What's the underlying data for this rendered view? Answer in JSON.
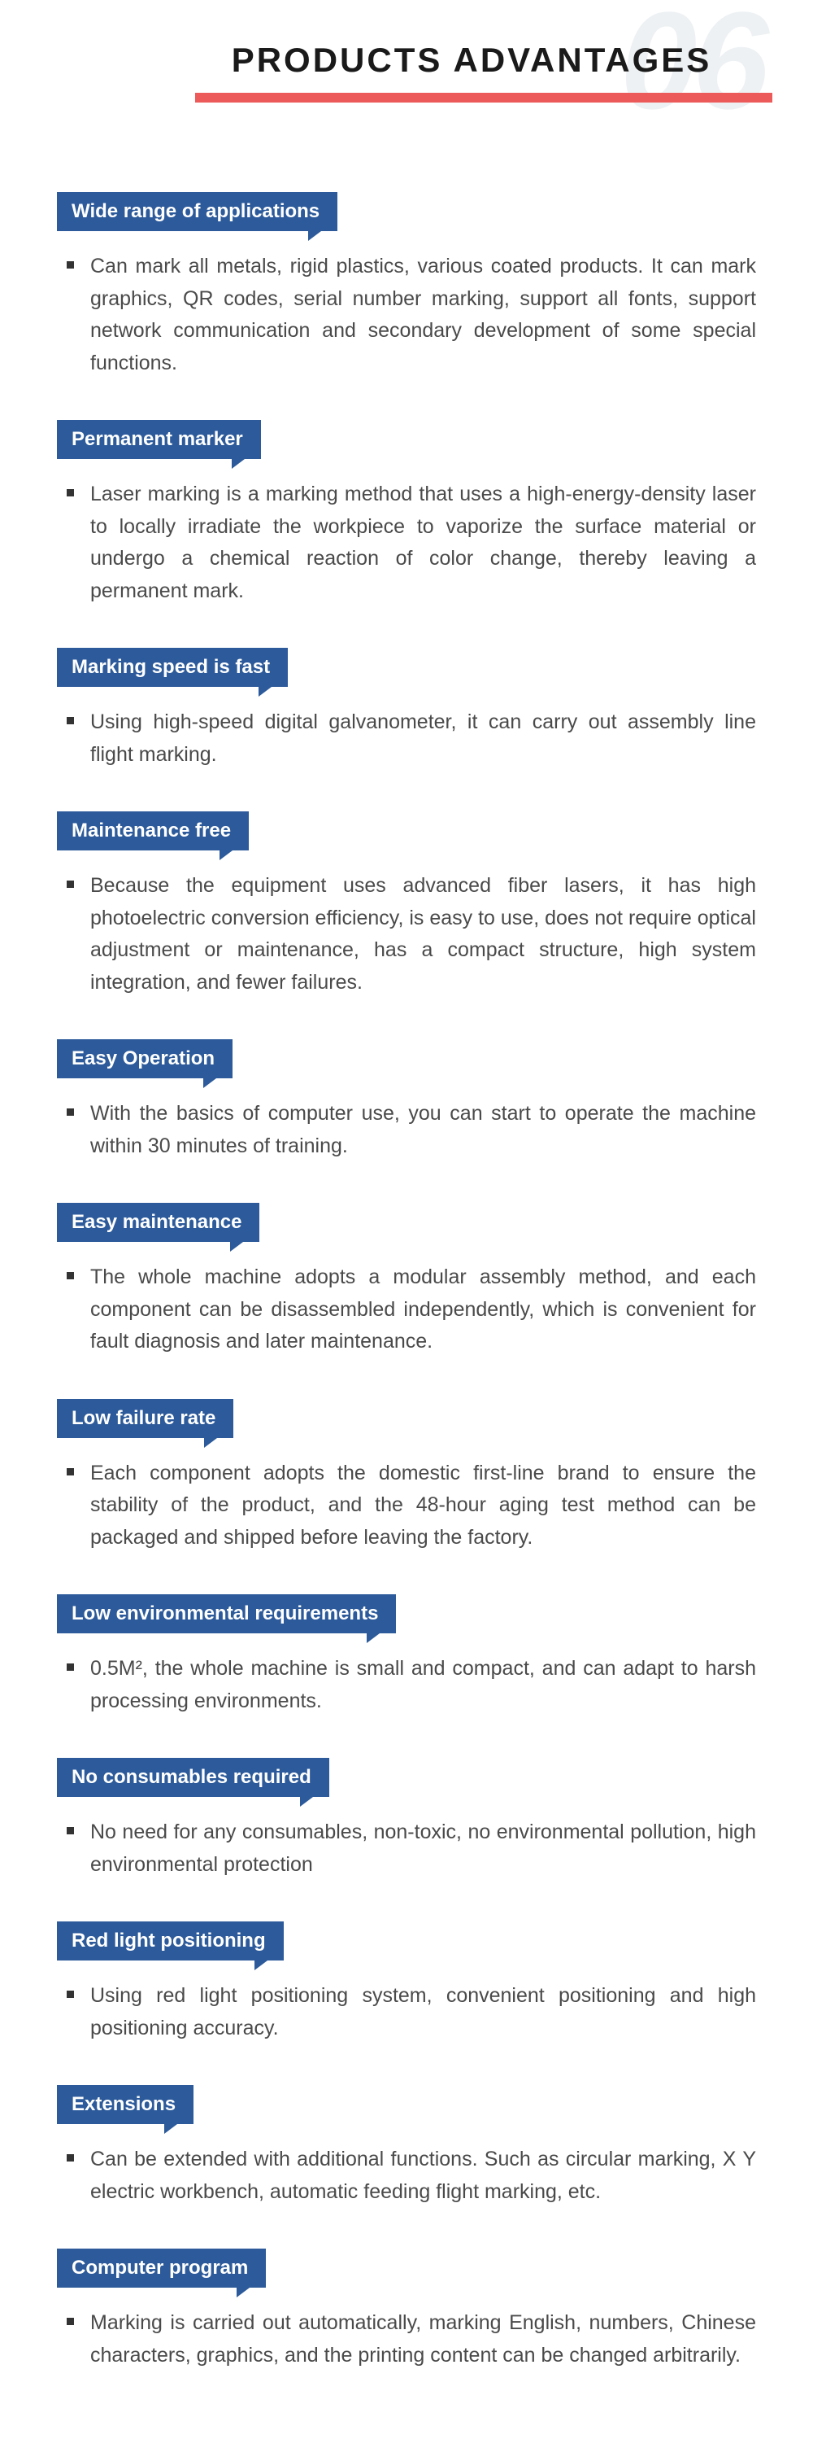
{
  "header": {
    "bg_number": "06",
    "title": "PRODUCTS  ADVANTAGES",
    "title_color": "#1a1a1a",
    "title_fontsize": 42,
    "bg_number_color": "#eef1f4",
    "red_bar_color": "#ec5a5a"
  },
  "tag_style": {
    "bg_color": "#2c5a9a",
    "text_color": "#ffffff",
    "fontsize": 24
  },
  "body_style": {
    "fontsize": 25,
    "color": "#4a4a4a",
    "bullet_color": "#333333"
  },
  "sections": [
    {
      "title": "Wide range of applications",
      "body": "Can mark all metals, rigid plastics, various coated products. It can mark graphics, QR codes, serial number marking, support all fonts, support network communication and secondary development of some special functions."
    },
    {
      "title": "Permanent marker",
      "body": "Laser marking is a marking method that uses a high-energy-density laser to locally irradiate the workpiece to vaporize the surface material or undergo a chemical reaction of color change, thereby leaving a permanent mark."
    },
    {
      "title": "Marking speed is fast",
      "body": "Using high-speed digital galvanometer, it can carry out assembly line flight marking."
    },
    {
      "title": "Maintenance free",
      "body": "Because the equipment uses advanced fiber lasers, it has high    photoelectric conversion efficiency, is easy to use, does not require     optical adjustment or maintenance, has a compact structure, high system integration, and fewer failures."
    },
    {
      "title": "Easy Operation",
      "body": "With the basics of computer use, you can start to operate the machine within 30 minutes of training."
    },
    {
      "title": "Easy maintenance",
      "body": "The whole machine adopts a modular assembly method, and each component can be disassembled independently, which is convenient for fault diagnosis and later maintenance."
    },
    {
      "title": "Low failure rate",
      "body": "Each component adopts the domestic first-line brand to ensure the stability of the product, and the 48-hour aging test method can be packaged and shipped before leaving the factory."
    },
    {
      "title": "Low environmental requirements",
      "body": "0.5M², the whole machine is small and compact, and can adapt to harsh processing environments."
    },
    {
      "title": "No consumables required",
      "body": "No need for any consumables, non-toxic, no environmental pollution, high environmental protection"
    },
    {
      "title": "Red light positioning",
      "body": "Using red light positioning system, convenient positioning and high positioning accuracy."
    },
    {
      "title": "Extensions",
      "body": "Can be extended with additional functions. Such as circular marking, X Y electric workbench, automatic feeding flight marking, etc."
    },
    {
      "title": "Computer program",
      "body": "Marking is carried out automatically, marking English, numbers, Chinese characters, graphics, and the printing content can be changed arbitrarily."
    }
  ]
}
